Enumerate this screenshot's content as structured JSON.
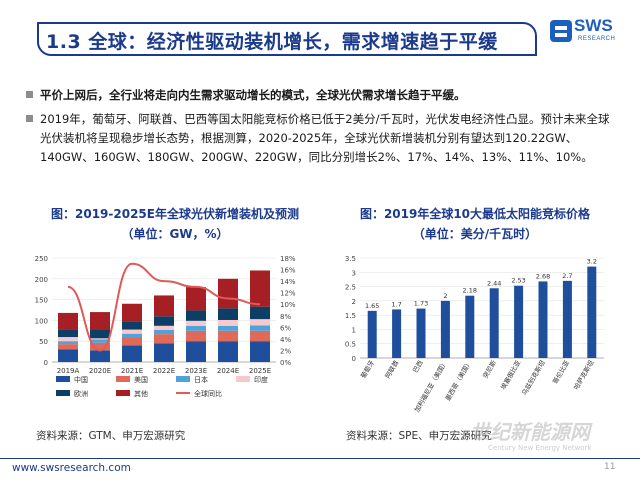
{
  "header": {
    "title": "1.3 全球：经济性驱动装机增长，需求增速趋于平缓",
    "logo_text": "SWS",
    "logo_sub": "RESEARCH"
  },
  "bullets": [
    "平价上网后，全行业将走向内生需求驱动增长的模式，全球光伏需求增长趋于平缓。",
    "2019年，葡萄牙、阿联酋、巴西等国太阳能竞标价格已低于2美分/千瓦时，光伏发电经济性凸显。预计未来全球光伏装机将呈现稳步增长态势，根据测算，2020-2025年，全球光伏新增装机分别有望达到120.22GW、140GW、160GW、180GW、200GW、220GW，同比分别增长2%、17%、14%、13%、11%、10%。"
  ],
  "left_chart_title": [
    "图：2019-2025E年全球光伏新增装机及预测",
    "（单位：GW，%）"
  ],
  "right_chart_title": [
    "图：2019年全球10大最低太阳能竞标价格",
    "（单位：美分/千瓦时）"
  ],
  "left_source": "资料来源：GTM、申万宏源研究",
  "right_source": "资料来源：SPE、申万宏源研究",
  "footer": {
    "url": "www.swsresearch.com",
    "page": "11"
  },
  "watermark": {
    "main": "世纪新能源网",
    "sub": "Century New Energy Network"
  },
  "chart_data": [
    {
      "type": "bar",
      "stacked": true,
      "categories": [
        "2019A",
        "2020E",
        "2021E",
        "2022E",
        "2023E",
        "2024E",
        "2025E"
      ],
      "ylim": [
        0,
        250
      ],
      "yticks": [
        0,
        50,
        100,
        150,
        200,
        250
      ],
      "y2lim": [
        0,
        18
      ],
      "y2ticks": [
        "0%",
        "2%",
        "4%",
        "6%",
        "8%",
        "10%",
        "12%",
        "14%",
        "16%",
        "18%"
      ],
      "series": [
        {
          "name": "中国",
          "color": "#1f4e9c",
          "values": [
            30,
            28,
            40,
            45,
            50,
            50,
            50
          ]
        },
        {
          "name": "美国",
          "color": "#e06a5a",
          "values": [
            13,
            18,
            20,
            22,
            25,
            25,
            25
          ]
        },
        {
          "name": "日本",
          "color": "#4fa3d9",
          "values": [
            7,
            8,
            8,
            10,
            12,
            12,
            13
          ]
        },
        {
          "name": "印度",
          "color": "#f6c9cf",
          "values": [
            10,
            3,
            10,
            10,
            12,
            14,
            15
          ]
        },
        {
          "name": "欧洲",
          "color": "#0d3f66",
          "values": [
            17,
            21,
            20,
            23,
            25,
            28,
            30
          ]
        },
        {
          "name": "其他",
          "color": "#a51f24",
          "values": [
            41,
            42,
            42,
            50,
            56,
            71,
            87
          ]
        }
      ],
      "line_series": {
        "name": "全球同比",
        "color": "#e05a5a",
        "values": [
          13,
          2,
          17,
          14,
          13,
          11,
          10
        ]
      }
    },
    {
      "type": "bar",
      "categories": [
        "葡萄牙",
        "阿联酋",
        "巴西",
        "加利福尼亚（美国）",
        "墨西哥（美国）",
        "突尼斯",
        "埃塞俄比亚",
        "乌兹别克斯坦",
        "哥伦比亚",
        "哈萨克斯坦"
      ],
      "values": [
        1.65,
        1.7,
        1.73,
        2,
        2.18,
        2.44,
        2.53,
        2.68,
        2.7,
        3.2
      ],
      "ylim": [
        0,
        3.5
      ],
      "yticks": [
        "0",
        "0.5",
        "1",
        "1.5",
        "2",
        "2.5",
        "3",
        "3.5"
      ],
      "color": "#1f4e9c"
    }
  ]
}
